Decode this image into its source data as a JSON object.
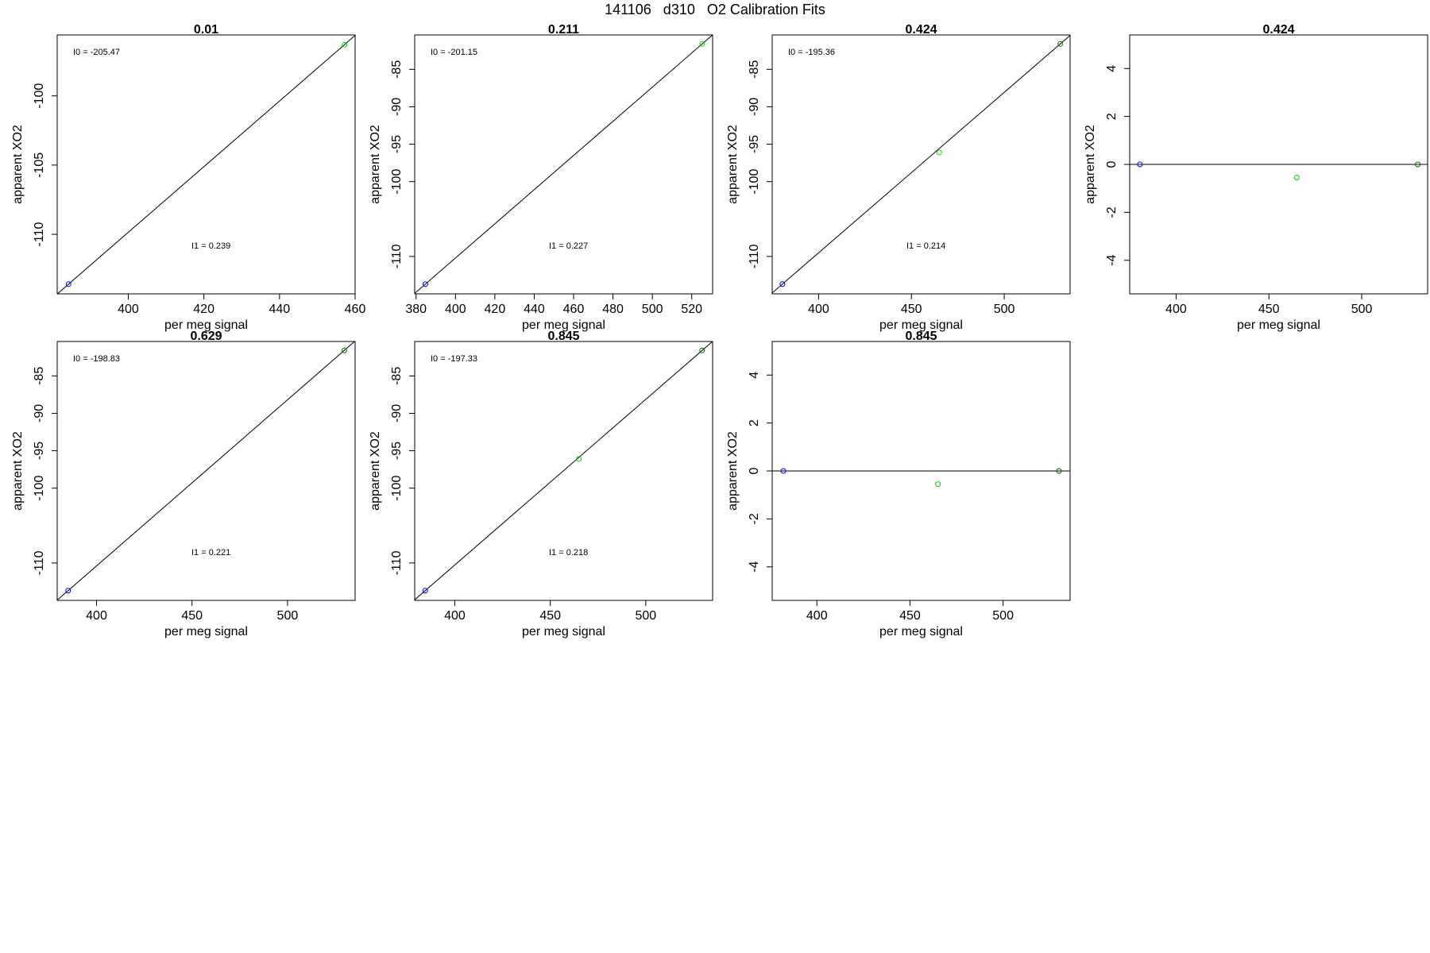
{
  "page_title": "141106   d310   O2 Calibration Fits",
  "colors": {
    "blue_point": "#0000ff",
    "green_point": "#00cc00",
    "dark_point": "#006400",
    "line": "#000000"
  },
  "chart_data": [
    {
      "type": "scatter",
      "title": "0.01",
      "xlabel": "per meg signal",
      "ylabel": "apparent XO2",
      "xlim": [
        381.2,
        460
      ],
      "ylim": [
        -114.3,
        -95.6
      ],
      "xticks": [
        400,
        420,
        440,
        460
      ],
      "yticks": [
        -100,
        -105,
        -110
      ],
      "fit_line": true,
      "annotations": [
        "I0 =  -205.47",
        "I1 =  0.239"
      ],
      "points": [
        {
          "x": 384.2,
          "y": -113.6,
          "color": "blue"
        },
        {
          "x": 457.2,
          "y": -96.3,
          "color": "green"
        }
      ]
    },
    {
      "type": "scatter",
      "title": "0.211",
      "xlabel": "per meg signal",
      "ylabel": "apparent XO2",
      "xlim": [
        379.3,
        530.6
      ],
      "ylim": [
        -115.0,
        -80.4
      ],
      "xticks": [
        380,
        400,
        420,
        440,
        460,
        480,
        500,
        520
      ],
      "yticks": [
        -85,
        -90,
        -95,
        -100,
        -110
      ],
      "fit_line": true,
      "annotations": [
        "I0 =  -201.15",
        "I1 =  0.227"
      ],
      "points": [
        {
          "x": 384.7,
          "y": -113.7,
          "color": "blue"
        },
        {
          "x": 525.3,
          "y": -81.6,
          "color": "green"
        }
      ]
    },
    {
      "type": "scatter",
      "title": "0.424",
      "xlabel": "per meg signal",
      "ylabel": "apparent XO2",
      "xlim": [
        375.0,
        535.5
      ],
      "ylim": [
        -115.0,
        -80.4
      ],
      "xticks": [
        400,
        450,
        500
      ],
      "yticks": [
        -85,
        -90,
        -95,
        -100,
        -110
      ],
      "fit_line": true,
      "annotations": [
        "I0 =  -195.36",
        "I1 =  0.214"
      ],
      "points": [
        {
          "x": 380.5,
          "y": -113.7,
          "color": "blue"
        },
        {
          "x": 465,
          "y": -96.1,
          "color": "green"
        },
        {
          "x": 530.2,
          "y": -81.6,
          "color": "darkgreen"
        }
      ]
    },
    {
      "type": "scatter",
      "title": "0.424",
      "xlabel": "per meg signal",
      "ylabel": "apparent XO2",
      "xlim": [
        375.0,
        535.5
      ],
      "ylim": [
        -5.4,
        5.4
      ],
      "xticks": [
        400,
        450,
        500
      ],
      "yticks": [
        4,
        2,
        0,
        -2,
        -4
      ],
      "zero_line": true,
      "points": [
        {
          "x": 380.5,
          "y": 0,
          "color": "blue"
        },
        {
          "x": 465,
          "y": -0.55,
          "color": "green"
        },
        {
          "x": 530.2,
          "y": 0,
          "color": "darkgreen"
        }
      ]
    },
    {
      "type": "scatter",
      "title": "0.629",
      "xlabel": "per meg signal",
      "ylabel": "apparent XO2",
      "xlim": [
        379.4,
        535.4
      ],
      "ylim": [
        -115.0,
        -80.4
      ],
      "xticks": [
        400,
        450,
        500
      ],
      "yticks": [
        -85,
        -90,
        -95,
        -100,
        -110
      ],
      "fit_line": true,
      "annotations": [
        "I0 =  -198.83",
        "I1 =  0.221"
      ],
      "points": [
        {
          "x": 385.1,
          "y": -113.7,
          "color": "blue"
        },
        {
          "x": 529.7,
          "y": -81.6,
          "color": "darkgreen"
        }
      ]
    },
    {
      "type": "scatter",
      "title": "0.845",
      "xlabel": "per meg signal",
      "ylabel": "apparent XO2",
      "xlim": [
        379.0,
        535.0
      ],
      "ylim": [
        -115.0,
        -80.4
      ],
      "xticks": [
        400,
        450,
        500
      ],
      "yticks": [
        -85,
        -90,
        -95,
        -100,
        -110
      ],
      "fit_line": true,
      "annotations": [
        "I0 =  -197.33",
        "I1 =  0.218"
      ],
      "points": [
        {
          "x": 384.5,
          "y": -113.7,
          "color": "blue"
        },
        {
          "x": 465.0,
          "y": -96.1,
          "color": "green"
        },
        {
          "x": 529.5,
          "y": -81.6,
          "color": "darkgreen"
        }
      ]
    },
    {
      "type": "scatter",
      "title": "0.845",
      "xlabel": "per meg signal",
      "ylabel": "apparent XO2",
      "xlim": [
        376.0,
        536.0
      ],
      "ylim": [
        -5.4,
        5.4
      ],
      "xticks": [
        400,
        450,
        500
      ],
      "yticks": [
        4,
        2,
        0,
        -2,
        -4
      ],
      "zero_line": true,
      "points": [
        {
          "x": 382.0,
          "y": 0,
          "color": "blue"
        },
        {
          "x": 465.0,
          "y": -0.55,
          "color": "green"
        },
        {
          "x": 530.0,
          "y": 0,
          "color": "darkgreen"
        }
      ]
    }
  ]
}
